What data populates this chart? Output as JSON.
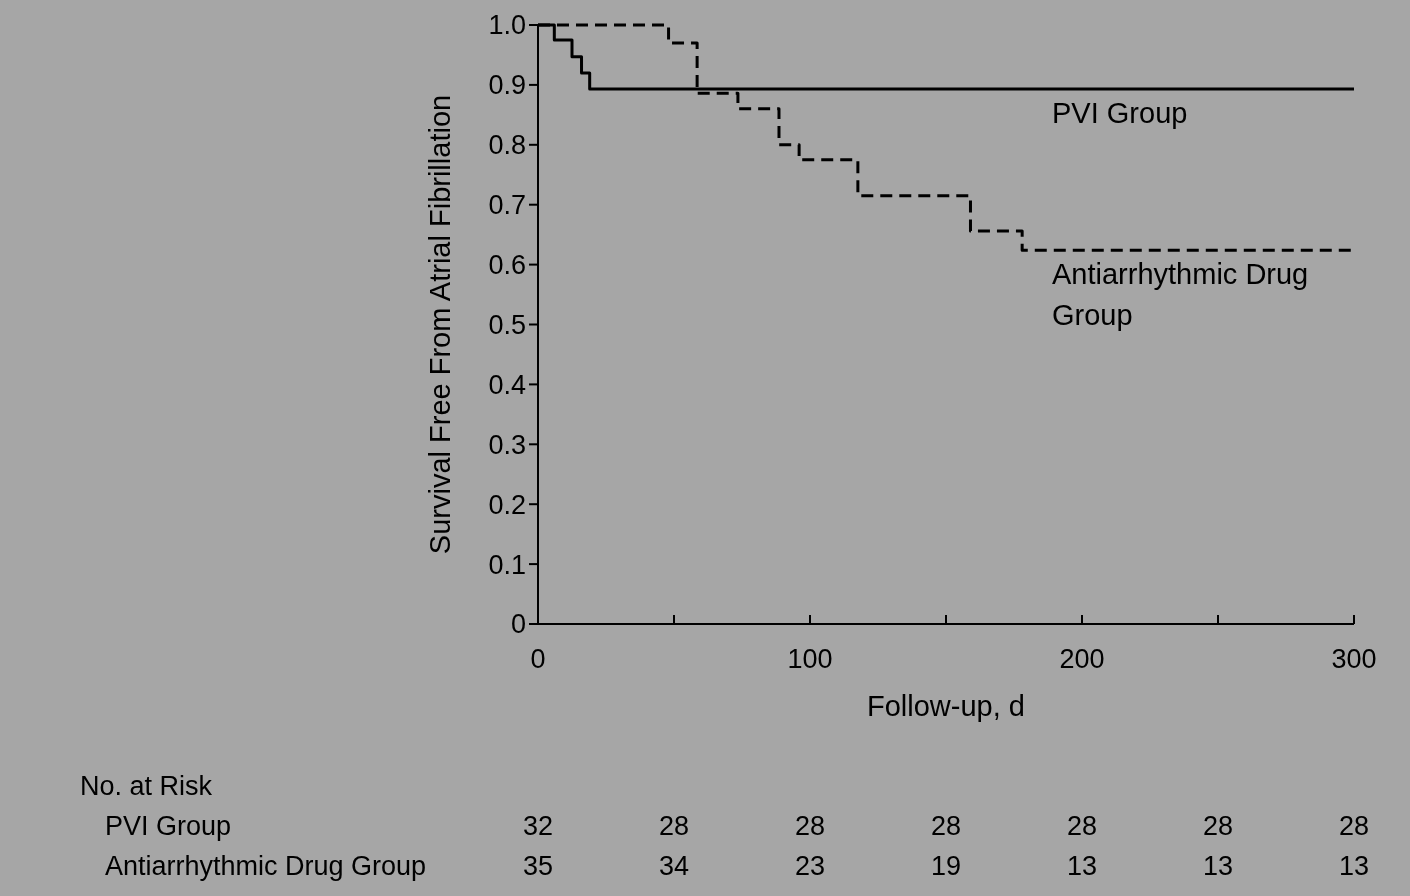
{
  "chart_data": {
    "type": "step",
    "xlabel": "Follow-up, d",
    "ylabel": "Survival Free From Atrial Fibrillation",
    "xlim": [
      0,
      300
    ],
    "ylim": [
      0,
      1
    ],
    "xticks": [
      0,
      {
        "value": 50,
        "label": null
      },
      100,
      {
        "value": 150,
        "label": null
      },
      200,
      {
        "value": 250,
        "label": null
      },
      300
    ],
    "yticks": [
      0,
      0.1,
      0.2,
      0.3,
      0.4,
      0.5,
      0.6,
      0.7,
      0.8,
      0.9,
      {
        "value": 1,
        "label": "1.0"
      }
    ],
    "grid": false,
    "marker": "none",
    "series": [
      {
        "name": "PVI Group",
        "color": "#000000",
        "line_style": "solid",
        "x": [
          0,
          6,
          12.5,
          16,
          19,
          300
        ],
        "values": [
          1,
          0.975,
          0.947,
          0.92,
          0.893,
          0.893
        ]
      },
      {
        "name": "Antiarrhythmic Drug Group",
        "color": "#000000",
        "line_style": "dashed",
        "x": [
          0,
          48,
          58.5,
          73.5,
          88.6,
          96,
          117.6,
          159,
          178,
          300
        ],
        "values": [
          1,
          0.97,
          0.886,
          0.86,
          0.8,
          0.775,
          0.715,
          0.656,
          0.624,
          0.624
        ]
      }
    ],
    "annotations": [
      "No. at Risk",
      "PVI Group",
      "32",
      "28",
      "28",
      "28",
      "28",
      "28",
      "28",
      "Antiarrhythmic Drug Group",
      "35",
      "34",
      "23",
      "19",
      "13",
      "13",
      "13"
    ]
  }
}
